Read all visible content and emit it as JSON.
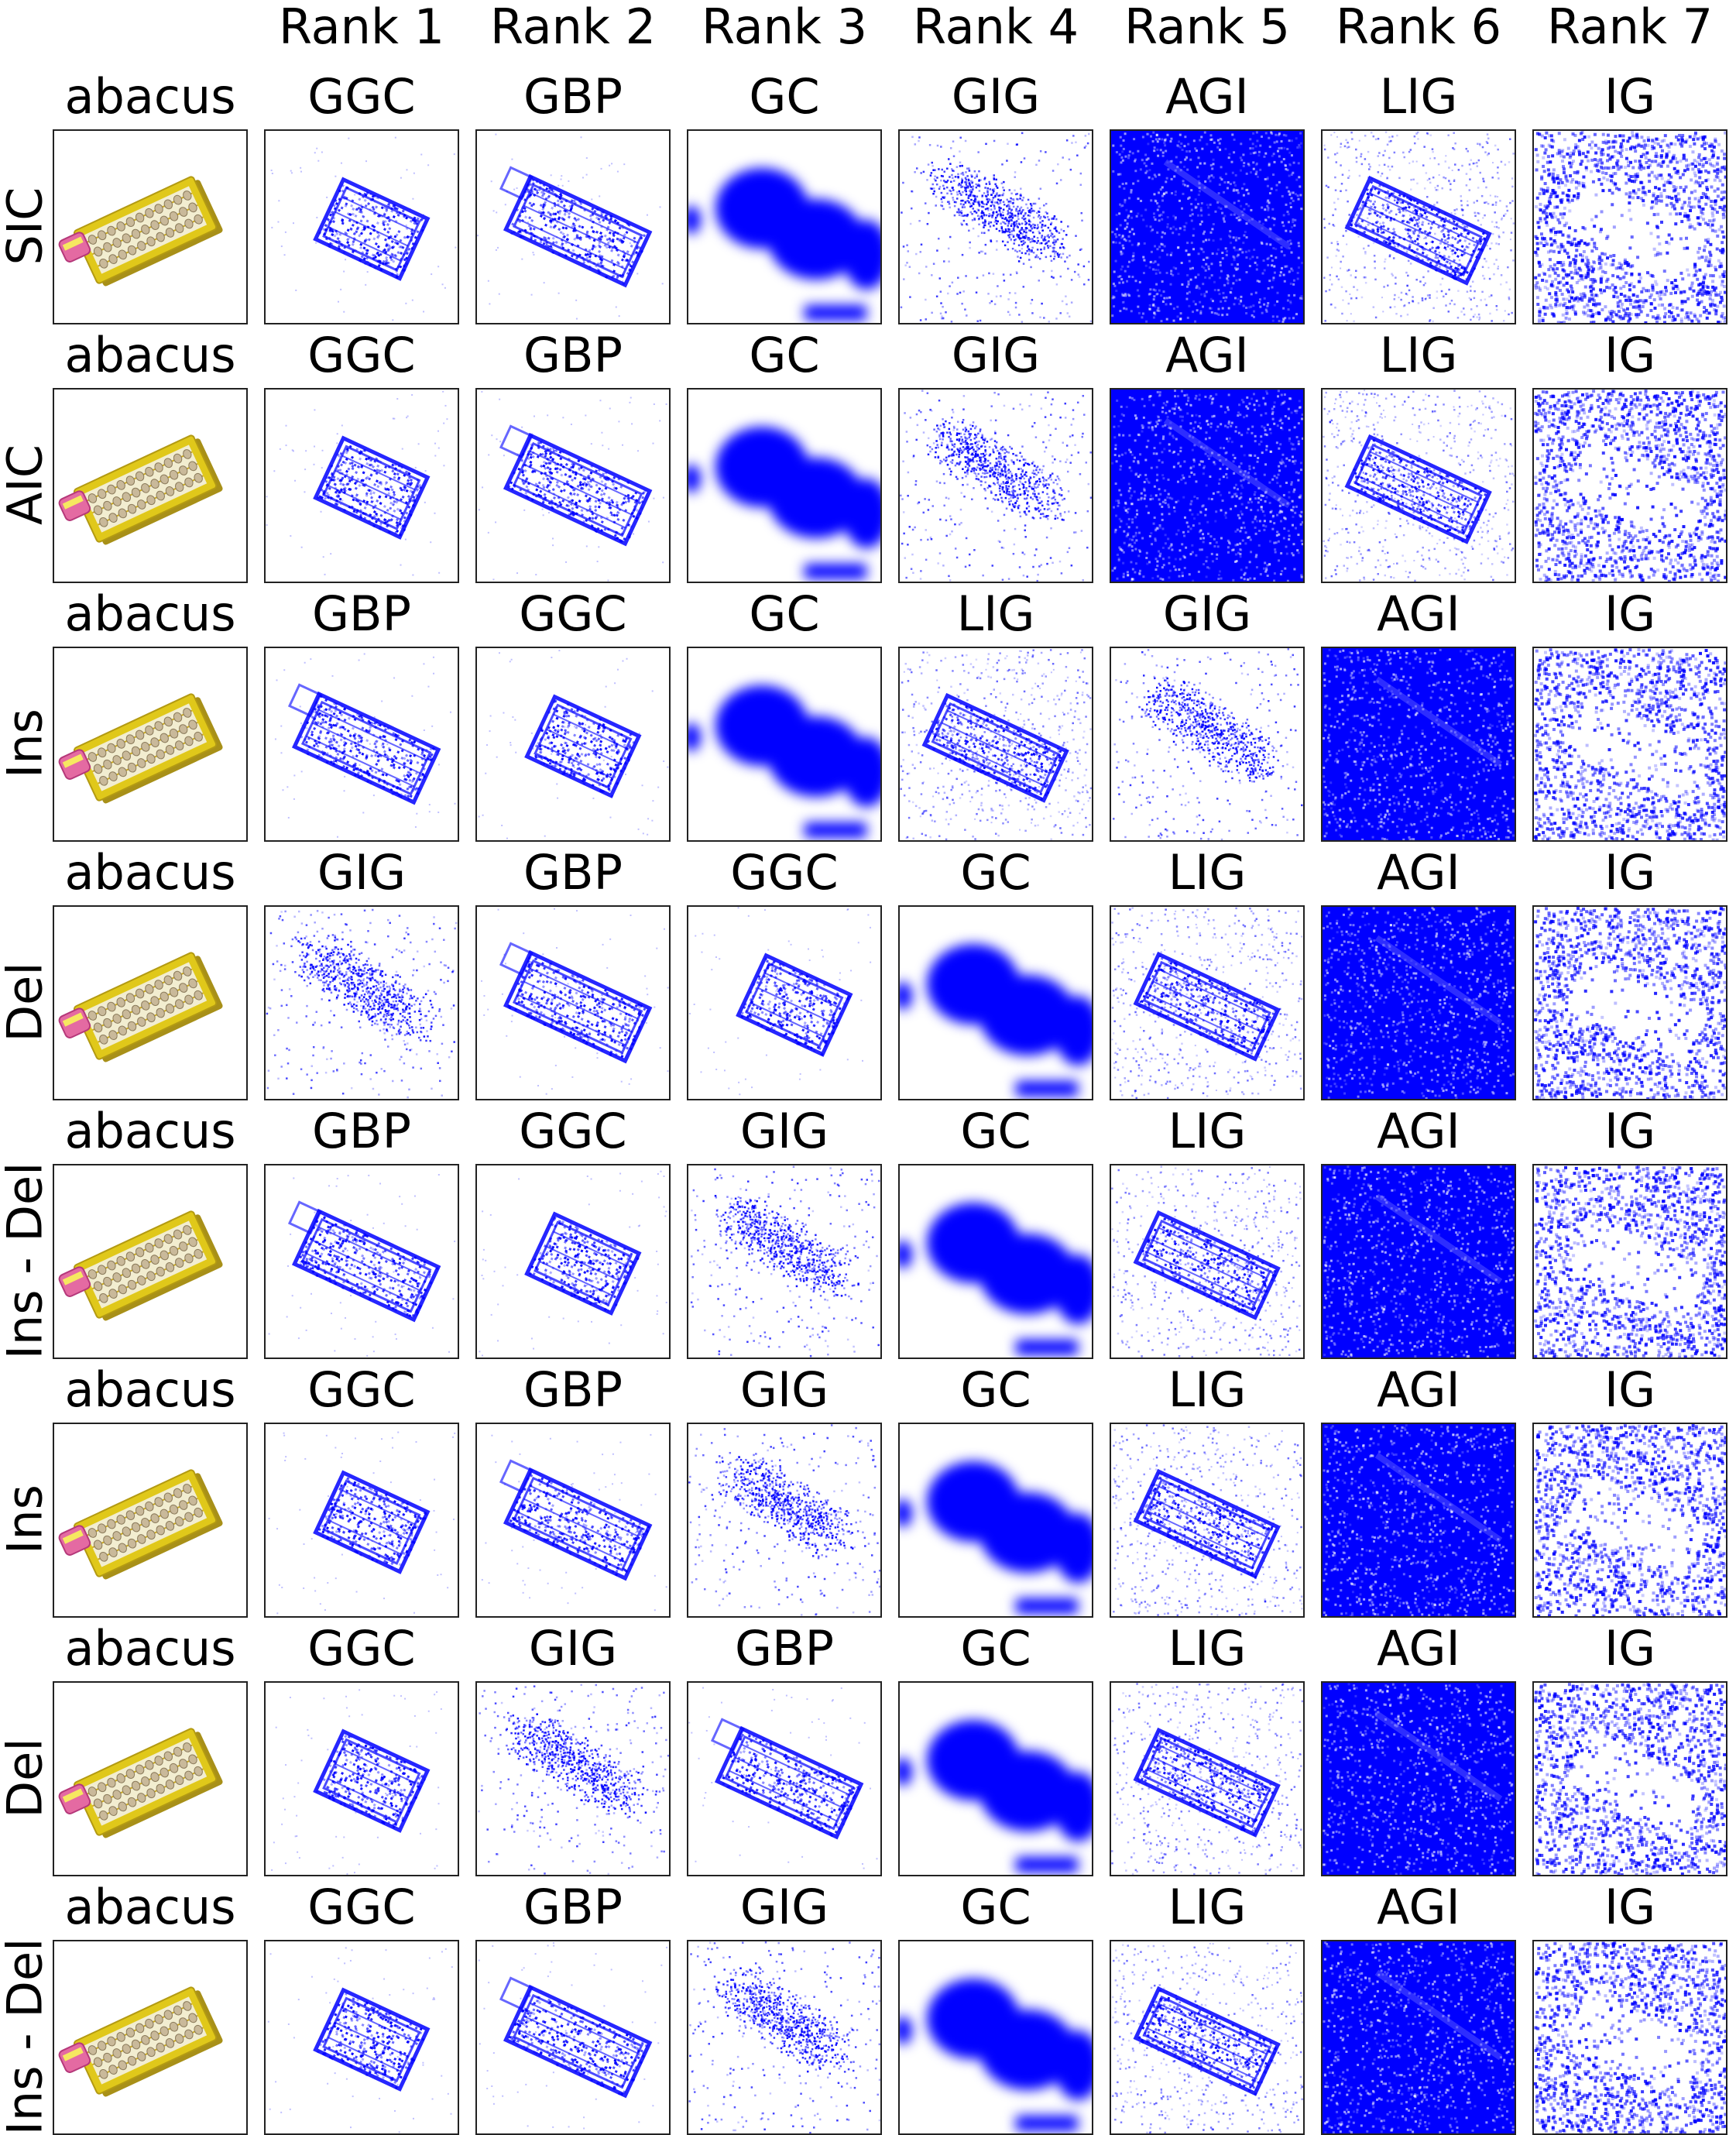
{
  "column_headers": [
    "Rank 1",
    "Rank 2",
    "Rank 3",
    "Rank 4",
    "Rank 5",
    "Rank 6",
    "Rank 7"
  ],
  "class_label": "abacus",
  "colors": {
    "attribution": "#0000ff",
    "abacus_frame": "#e0c81a",
    "frame_border": "#222222"
  },
  "rows": [
    {
      "metric": "SIC",
      "methods": [
        "GGC",
        "GBP",
        "GC",
        "GIG",
        "AGI",
        "LIG",
        "IG"
      ]
    },
    {
      "metric": "AIC",
      "methods": [
        "GGC",
        "GBP",
        "GC",
        "GIG",
        "AGI",
        "LIG",
        "IG"
      ]
    },
    {
      "metric": "Ins",
      "methods": [
        "GBP",
        "GGC",
        "GC",
        "LIG",
        "GIG",
        "AGI",
        "IG"
      ]
    },
    {
      "metric": "Del",
      "methods": [
        "GIG",
        "GBP",
        "GGC",
        "GC",
        "LIG",
        "AGI",
        "IG"
      ]
    },
    {
      "metric": "Ins - Del",
      "methods": [
        "GBP",
        "GGC",
        "GIG",
        "GC",
        "LIG",
        "AGI",
        "IG"
      ]
    },
    {
      "metric": "Ins",
      "methods": [
        "GGC",
        "GBP",
        "GIG",
        "GC",
        "LIG",
        "AGI",
        "IG"
      ]
    },
    {
      "metric": "Del",
      "methods": [
        "GGC",
        "GIG",
        "GBP",
        "GC",
        "LIG",
        "AGI",
        "IG"
      ]
    },
    {
      "metric": "Ins - Del",
      "methods": [
        "GGC",
        "GBP",
        "GIG",
        "GC",
        "LIG",
        "AGI",
        "IG"
      ]
    }
  ]
}
